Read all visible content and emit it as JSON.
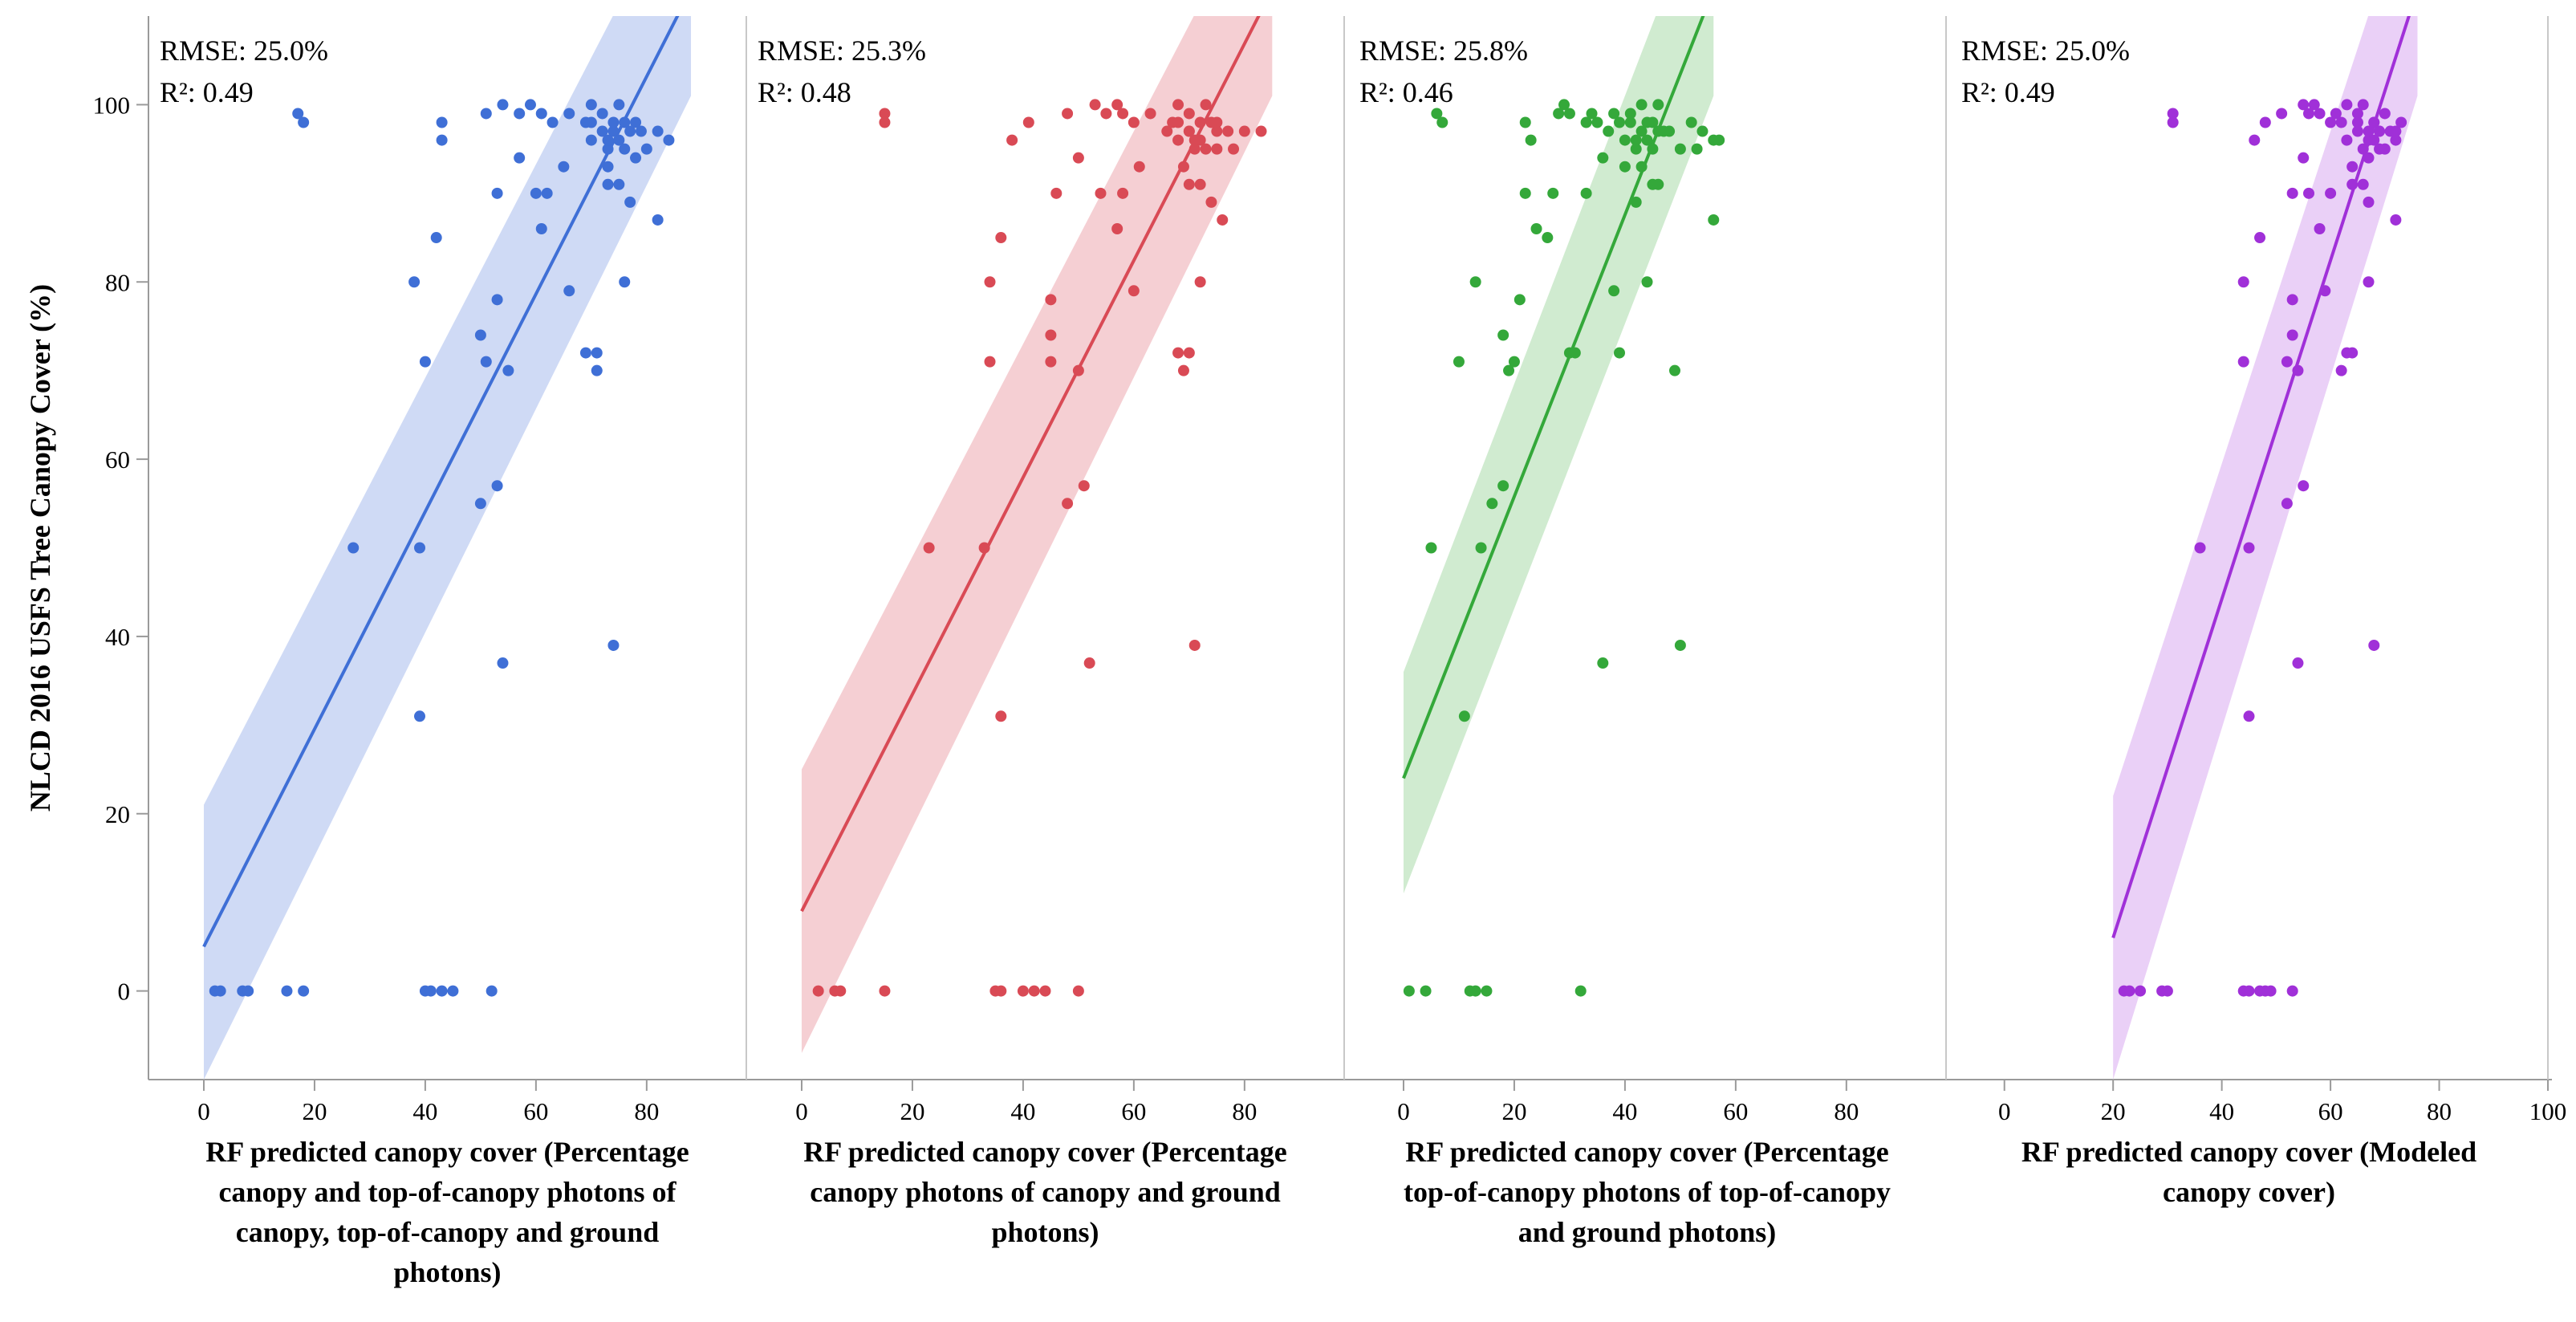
{
  "chart_data": {
    "type": "scatter",
    "ylabel": "NLCD 2016 USFS Tree Canopy Cover (%)",
    "ylim": [
      -10,
      110
    ],
    "yticks": [
      0,
      20,
      40,
      60,
      80,
      100
    ],
    "panels": [
      {
        "xlabel_lines": [
          "RF predicted canopy cover (Percentage",
          "canopy and top-of-canopy photons of",
          "canopy, top-of-canopy and ground",
          "photons)"
        ],
        "xlim": [
          -10,
          98
        ],
        "xticks": [
          0,
          20,
          40,
          60,
          80
        ],
        "rmse": "RMSE: 25.0%",
        "r2": "R²: 0.49",
        "color": "#3f6fd6",
        "band_color": "#c7d4f3",
        "fit": {
          "x0": 0,
          "y0": 5,
          "x1": 88,
          "y1": 113
        },
        "band": {
          "lower0": -10,
          "upper0": 21,
          "lowerEnd": 101,
          "upperEnd": 127
        },
        "points": [
          [
            2,
            0
          ],
          [
            3,
            0
          ],
          [
            7,
            0
          ],
          [
            8,
            0
          ],
          [
            15,
            0
          ],
          [
            18,
            0
          ],
          [
            40,
            0
          ],
          [
            41,
            0
          ],
          [
            43,
            0
          ],
          [
            45,
            0
          ],
          [
            52,
            0
          ],
          [
            39,
            31
          ],
          [
            54,
            37
          ],
          [
            74,
            39
          ],
          [
            39,
            50
          ],
          [
            27,
            50
          ],
          [
            50,
            55
          ],
          [
            53,
            57
          ],
          [
            51,
            71
          ],
          [
            50,
            74
          ],
          [
            40,
            71
          ],
          [
            53,
            78
          ],
          [
            55,
            70
          ],
          [
            38,
            80
          ],
          [
            66,
            79
          ],
          [
            69,
            72
          ],
          [
            71,
            72
          ],
          [
            71,
            70
          ],
          [
            76,
            80
          ],
          [
            42,
            85
          ],
          [
            61,
            86
          ],
          [
            82,
            87
          ],
          [
            53,
            90
          ],
          [
            60,
            90
          ],
          [
            62,
            90
          ],
          [
            57,
            94
          ],
          [
            65,
            93
          ],
          [
            73,
            93
          ],
          [
            73,
            91
          ],
          [
            75,
            91
          ],
          [
            77,
            89
          ],
          [
            74,
            97
          ],
          [
            78,
            94
          ],
          [
            78,
            98
          ],
          [
            82,
            97
          ],
          [
            80,
            95
          ],
          [
            84,
            96
          ],
          [
            43,
            96
          ],
          [
            43,
            98
          ],
          [
            51,
            99
          ],
          [
            54,
            100
          ],
          [
            57,
            99
          ],
          [
            59,
            100
          ],
          [
            61,
            99
          ],
          [
            63,
            98
          ],
          [
            66,
            99
          ],
          [
            70,
            100
          ],
          [
            69,
            98
          ],
          [
            70,
            96
          ],
          [
            72,
            99
          ],
          [
            73,
            95
          ],
          [
            75,
            100
          ],
          [
            75,
            96
          ],
          [
            76,
            98
          ],
          [
            77,
            97
          ],
          [
            79,
            97
          ],
          [
            17,
            99
          ],
          [
            18,
            98
          ],
          [
            70,
            98
          ],
          [
            72,
            97
          ],
          [
            74,
            98
          ],
          [
            76,
            95
          ],
          [
            73,
            96
          ]
        ]
      },
      {
        "xlabel_lines": [
          "RF predicted canopy cover (Percentage",
          "canopy photons of canopy and ground",
          "photons)"
        ],
        "xlim": [
          -10,
          98
        ],
        "xticks": [
          0,
          20,
          40,
          60,
          80
        ],
        "rmse": "RMSE: 25.3%",
        "r2": "R²: 0.48",
        "color": "#d94a55",
        "band_color": "#f3c7cb",
        "fit": {
          "x0": 0,
          "y0": 9,
          "x1": 85,
          "y1": 113
        },
        "band": {
          "lower0": -7,
          "upper0": 25,
          "lowerEnd": 101,
          "upperEnd": 127
        },
        "points": [
          [
            3,
            0
          ],
          [
            6,
            0
          ],
          [
            7,
            0
          ],
          [
            15,
            0
          ],
          [
            35,
            0
          ],
          [
            36,
            0
          ],
          [
            40,
            0
          ],
          [
            42,
            0
          ],
          [
            44,
            0
          ],
          [
            50,
            0
          ],
          [
            36,
            31
          ],
          [
            52,
            37
          ],
          [
            71,
            39
          ],
          [
            33,
            50
          ],
          [
            23,
            50
          ],
          [
            48,
            55
          ],
          [
            51,
            57
          ],
          [
            50,
            70
          ],
          [
            45,
            71
          ],
          [
            45,
            74
          ],
          [
            34,
            71
          ],
          [
            45,
            78
          ],
          [
            34,
            80
          ],
          [
            60,
            79
          ],
          [
            68,
            72
          ],
          [
            70,
            72
          ],
          [
            69,
            70
          ],
          [
            72,
            80
          ],
          [
            36,
            85
          ],
          [
            57,
            86
          ],
          [
            76,
            87
          ],
          [
            46,
            90
          ],
          [
            54,
            90
          ],
          [
            58,
            90
          ],
          [
            50,
            94
          ],
          [
            61,
            93
          ],
          [
            69,
            93
          ],
          [
            70,
            91
          ],
          [
            72,
            91
          ],
          [
            74,
            89
          ],
          [
            70,
            97
          ],
          [
            75,
            95
          ],
          [
            75,
            98
          ],
          [
            80,
            97
          ],
          [
            78,
            95
          ],
          [
            83,
            97
          ],
          [
            38,
            96
          ],
          [
            41,
            98
          ],
          [
            48,
            99
          ],
          [
            53,
            100
          ],
          [
            55,
            99
          ],
          [
            57,
            100
          ],
          [
            58,
            99
          ],
          [
            60,
            98
          ],
          [
            63,
            99
          ],
          [
            68,
            100
          ],
          [
            67,
            98
          ],
          [
            68,
            96
          ],
          [
            70,
            99
          ],
          [
            71,
            95
          ],
          [
            73,
            100
          ],
          [
            72,
            96
          ],
          [
            74,
            98
          ],
          [
            75,
            97
          ],
          [
            77,
            97
          ],
          [
            15,
            99
          ],
          [
            15,
            98
          ],
          [
            68,
            98
          ],
          [
            70,
            97
          ],
          [
            72,
            98
          ],
          [
            73,
            95
          ],
          [
            71,
            96
          ],
          [
            66,
            97
          ]
        ]
      },
      {
        "xlabel_lines": [
          "RF predicted canopy cover (Percentage",
          "top-of-canopy photons of top-of-canopy",
          "and ground photons)"
        ],
        "xlim": [
          -10,
          98
        ],
        "xticks": [
          0,
          20,
          40,
          60,
          80
        ],
        "rmse": "RMSE: 25.8%",
        "r2": "R²: 0.46",
        "color": "#34a83a",
        "band_color": "#c8e8c8",
        "fit": {
          "x0": 0,
          "y0": 24,
          "x1": 56,
          "y1": 113
        },
        "band": {
          "lower0": 11,
          "upper0": 36,
          "lowerEnd": 101,
          "upperEnd": 127
        },
        "points": [
          [
            1,
            0
          ],
          [
            4,
            0
          ],
          [
            12,
            0
          ],
          [
            13,
            0
          ],
          [
            15,
            0
          ],
          [
            32,
            0
          ],
          [
            11,
            31
          ],
          [
            36,
            37
          ],
          [
            50,
            39
          ],
          [
            5,
            50
          ],
          [
            14,
            50
          ],
          [
            16,
            55
          ],
          [
            18,
            57
          ],
          [
            10,
            71
          ],
          [
            20,
            71
          ],
          [
            19,
            70
          ],
          [
            18,
            74
          ],
          [
            21,
            78
          ],
          [
            13,
            80
          ],
          [
            30,
            72
          ],
          [
            31,
            72
          ],
          [
            39,
            72
          ],
          [
            38,
            79
          ],
          [
            44,
            80
          ],
          [
            49,
            70
          ],
          [
            26,
            85
          ],
          [
            24,
            86
          ],
          [
            56,
            87
          ],
          [
            22,
            90
          ],
          [
            27,
            90
          ],
          [
            33,
            90
          ],
          [
            36,
            94
          ],
          [
            40,
            93
          ],
          [
            43,
            93
          ],
          [
            45,
            91
          ],
          [
            46,
            91
          ],
          [
            42,
            89
          ],
          [
            47,
            97
          ],
          [
            50,
            95
          ],
          [
            52,
            98
          ],
          [
            54,
            97
          ],
          [
            53,
            95
          ],
          [
            56,
            96
          ],
          [
            23,
            96
          ],
          [
            22,
            98
          ],
          [
            28,
            99
          ],
          [
            29,
            100
          ],
          [
            30,
            99
          ],
          [
            33,
            98
          ],
          [
            34,
            99
          ],
          [
            35,
            98
          ],
          [
            37,
            97
          ],
          [
            38,
            99
          ],
          [
            39,
            98
          ],
          [
            40,
            96
          ],
          [
            41,
            99
          ],
          [
            42,
            95
          ],
          [
            43,
            100
          ],
          [
            44,
            96
          ],
          [
            45,
            98
          ],
          [
            46,
            97
          ],
          [
            48,
            97
          ],
          [
            6,
            99
          ],
          [
            7,
            98
          ],
          [
            41,
            98
          ],
          [
            43,
            97
          ],
          [
            44,
            98
          ],
          [
            45,
            95
          ],
          [
            46,
            100
          ],
          [
            42,
            96
          ],
          [
            57,
            96
          ]
        ]
      },
      {
        "xlabel_lines": [
          "RF predicted canopy cover (Modeled",
          "canopy cover)"
        ],
        "xlim": [
          -10,
          100
        ],
        "xticks": [
          0,
          20,
          40,
          60,
          80,
          100
        ],
        "rmse": "RMSE: 25.0%",
        "r2": "R²: 0.49",
        "color": "#a030d8",
        "band_color": "#e6c8f6",
        "fit": {
          "x0": 20,
          "y0": 6,
          "x1": 76,
          "y1": 113
        },
        "band": {
          "lower0": -10,
          "upper0": 22,
          "lowerEnd": 101,
          "upperEnd": 127
        },
        "points": [
          [
            22,
            0
          ],
          [
            23,
            0
          ],
          [
            25,
            0
          ],
          [
            29,
            0
          ],
          [
            30,
            0
          ],
          [
            44,
            0
          ],
          [
            45,
            0
          ],
          [
            47,
            0
          ],
          [
            48,
            0
          ],
          [
            49,
            0
          ],
          [
            53,
            0
          ],
          [
            45,
            31
          ],
          [
            54,
            37
          ],
          [
            68,
            39
          ],
          [
            36,
            50
          ],
          [
            45,
            50
          ],
          [
            52,
            55
          ],
          [
            55,
            57
          ],
          [
            52,
            71
          ],
          [
            53,
            74
          ],
          [
            53,
            78
          ],
          [
            54,
            70
          ],
          [
            44,
            80
          ],
          [
            44,
            71
          ],
          [
            59,
            79
          ],
          [
            63,
            72
          ],
          [
            64,
            72
          ],
          [
            62,
            70
          ],
          [
            67,
            80
          ],
          [
            47,
            85
          ],
          [
            58,
            86
          ],
          [
            72,
            87
          ],
          [
            53,
            90
          ],
          [
            56,
            90
          ],
          [
            60,
            90
          ],
          [
            55,
            94
          ],
          [
            64,
            93
          ],
          [
            64,
            91
          ],
          [
            66,
            91
          ],
          [
            67,
            89
          ],
          [
            65,
            97
          ],
          [
            67,
            94
          ],
          [
            68,
            98
          ],
          [
            69,
            97
          ],
          [
            70,
            95
          ],
          [
            72,
            96
          ],
          [
            46,
            96
          ],
          [
            48,
            98
          ],
          [
            51,
            99
          ],
          [
            55,
            100
          ],
          [
            56,
            99
          ],
          [
            57,
            100
          ],
          [
            58,
            99
          ],
          [
            60,
            98
          ],
          [
            61,
            99
          ],
          [
            63,
            100
          ],
          [
            62,
            98
          ],
          [
            63,
            96
          ],
          [
            65,
            99
          ],
          [
            66,
            95
          ],
          [
            66,
            100
          ],
          [
            67,
            96
          ],
          [
            68,
            98
          ],
          [
            69,
            97
          ],
          [
            71,
            97
          ],
          [
            31,
            99
          ],
          [
            31,
            98
          ],
          [
            65,
            98
          ],
          [
            67,
            97
          ],
          [
            68,
            96
          ],
          [
            69,
            95
          ],
          [
            70,
            99
          ],
          [
            73,
            98
          ],
          [
            72,
            97
          ]
        ]
      }
    ]
  }
}
